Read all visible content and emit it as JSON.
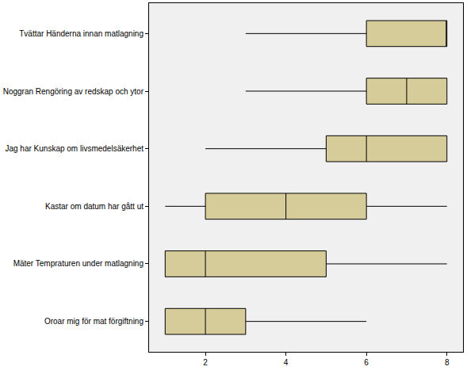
{
  "chart_data": {
    "type": "box",
    "orientation": "horizontal",
    "categories": [
      "Tvättar Händerna innan matlagning",
      "Noggran Rengöring av redskap och ytor",
      "Jag har Kunskap om livsmedelsäkerhet",
      "Kastar om datum har gått ut",
      "Mäter Tempraturen under matlagning",
      "Oroar mig för mat förgiftning"
    ],
    "min": [
      3,
      3,
      2,
      1,
      1,
      1
    ],
    "q1": [
      6,
      6,
      5,
      2,
      1,
      1
    ],
    "median": [
      8,
      7,
      6,
      4,
      2,
      2
    ],
    "q3": [
      8,
      8,
      8,
      6,
      5,
      3
    ],
    "max": [
      8,
      8,
      8,
      8,
      8,
      6
    ],
    "color": "#d5cc9a",
    "xlim": [
      0.6,
      8.4
    ],
    "xticks": [
      2,
      4,
      6,
      8
    ],
    "grid": false
  }
}
